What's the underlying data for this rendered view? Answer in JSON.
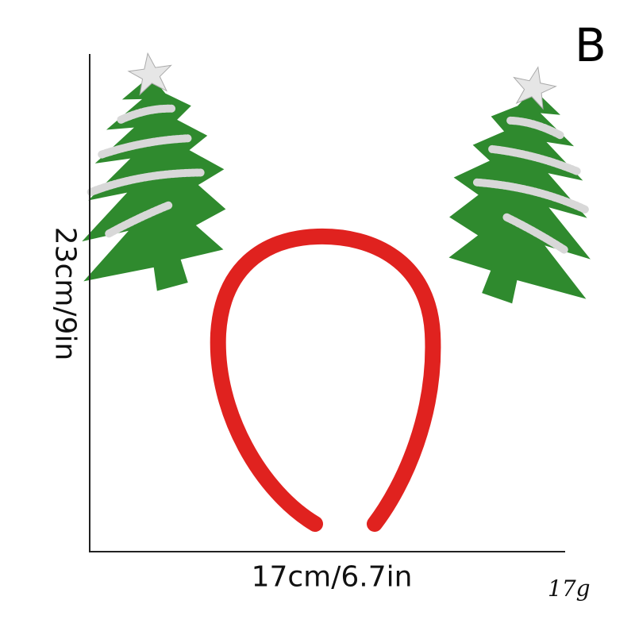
{
  "variant_label": "B",
  "dimensions": {
    "height": "23cm/9in",
    "width": "17cm/6.7in",
    "weight": "17g"
  },
  "colors": {
    "headband": "#e0221f",
    "tree": "#2f8a2e",
    "tinsel": "#d8d8d8",
    "star": "#e6e6e6"
  }
}
